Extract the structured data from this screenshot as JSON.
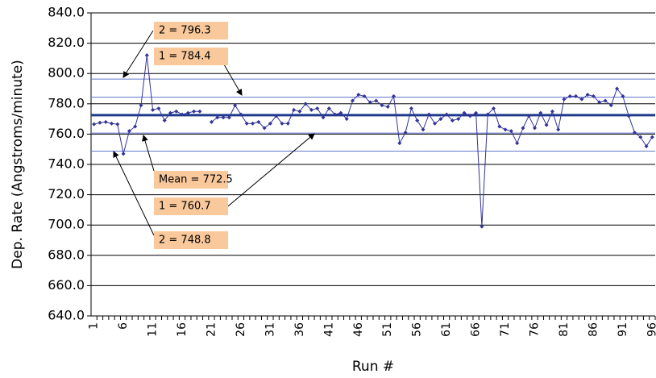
{
  "chart_data": {
    "type": "line",
    "y_label": "Dep. Rate (Angstroms/minute)",
    "x_label": "Run #",
    "x": [
      1,
      2,
      3,
      4,
      5,
      6,
      7,
      8,
      9,
      10,
      11,
      12,
      13,
      14,
      15,
      16,
      17,
      18,
      19,
      20,
      21,
      22,
      23,
      24,
      25,
      26,
      27,
      28,
      29,
      30,
      31,
      32,
      33,
      34,
      35,
      36,
      37,
      38,
      39,
      40,
      41,
      42,
      43,
      44,
      45,
      46,
      47,
      48,
      49,
      50,
      51,
      52,
      53,
      54,
      55,
      56,
      57,
      58,
      59,
      60,
      61,
      62,
      63,
      64,
      65,
      66,
      67,
      68,
      69,
      70,
      71,
      72,
      73,
      74,
      75,
      76,
      77,
      78,
      79,
      80,
      81,
      82,
      83,
      84,
      85,
      86,
      87,
      88,
      89,
      90,
      91,
      92,
      93,
      94,
      95,
      96
    ],
    "series": [
      {
        "name": "Dep. Rate",
        "color": "#333399",
        "values": [
          766.5,
          767.5,
          768,
          767,
          766.5,
          747,
          762,
          765,
          779,
          812,
          776,
          777,
          769,
          774,
          775,
          773,
          774,
          775,
          775,
          null,
          768,
          771,
          771,
          771,
          779,
          773,
          767,
          767,
          768,
          764,
          767,
          772,
          767,
          767,
          776,
          775,
          780,
          776,
          777,
          771,
          777,
          773,
          774,
          770,
          782,
          786,
          785,
          781,
          782,
          779,
          778,
          785,
          754,
          761,
          777,
          769,
          763,
          773,
          767,
          770,
          773,
          769,
          770,
          774,
          772,
          774,
          699,
          773,
          777,
          765,
          763,
          762,
          754,
          764,
          772,
          764,
          774,
          766,
          775,
          763,
          783,
          785,
          785,
          783,
          786,
          785,
          781,
          782,
          779,
          790,
          785,
          772,
          761,
          758,
          752,
          758
        ]
      }
    ],
    "xlim": [
      0.5,
      96.5
    ],
    "xticks": [
      1,
      6,
      11,
      16,
      21,
      26,
      31,
      36,
      41,
      46,
      51,
      56,
      61,
      66,
      71,
      76,
      81,
      86,
      91,
      96
    ],
    "ylim": [
      640,
      840
    ],
    "yticks": [
      {
        "value": 640,
        "label": "640.0"
      },
      {
        "value": 660,
        "label": "660.0"
      },
      {
        "value": 680,
        "label": "680.0"
      },
      {
        "value": 700,
        "label": "700.0"
      },
      {
        "value": 720,
        "label": "720.0"
      },
      {
        "value": 740,
        "label": "740.0"
      },
      {
        "value": 760,
        "label": "760.0"
      },
      {
        "value": 780,
        "label": "780.0"
      },
      {
        "value": 800,
        "label": "800.0"
      },
      {
        "value": 820,
        "label": "820.0"
      },
      {
        "value": 840,
        "label": "840.0"
      }
    ],
    "grid": true,
    "reference_lines": [
      {
        "label": "2 = 796.3",
        "value": 796.3,
        "color": "#6677cc"
      },
      {
        "label": "1 = 784.4",
        "value": 784.4,
        "color": "#6677cc"
      },
      {
        "label": "Mean = 772.5",
        "value": 772.5,
        "color": "#1f3a8a"
      },
      {
        "label": "1 = 760.7",
        "value": 760.7,
        "color": "#6677cc"
      },
      {
        "label": "2 = 748.8",
        "value": 748.8,
        "color": "#6677cc"
      }
    ]
  }
}
